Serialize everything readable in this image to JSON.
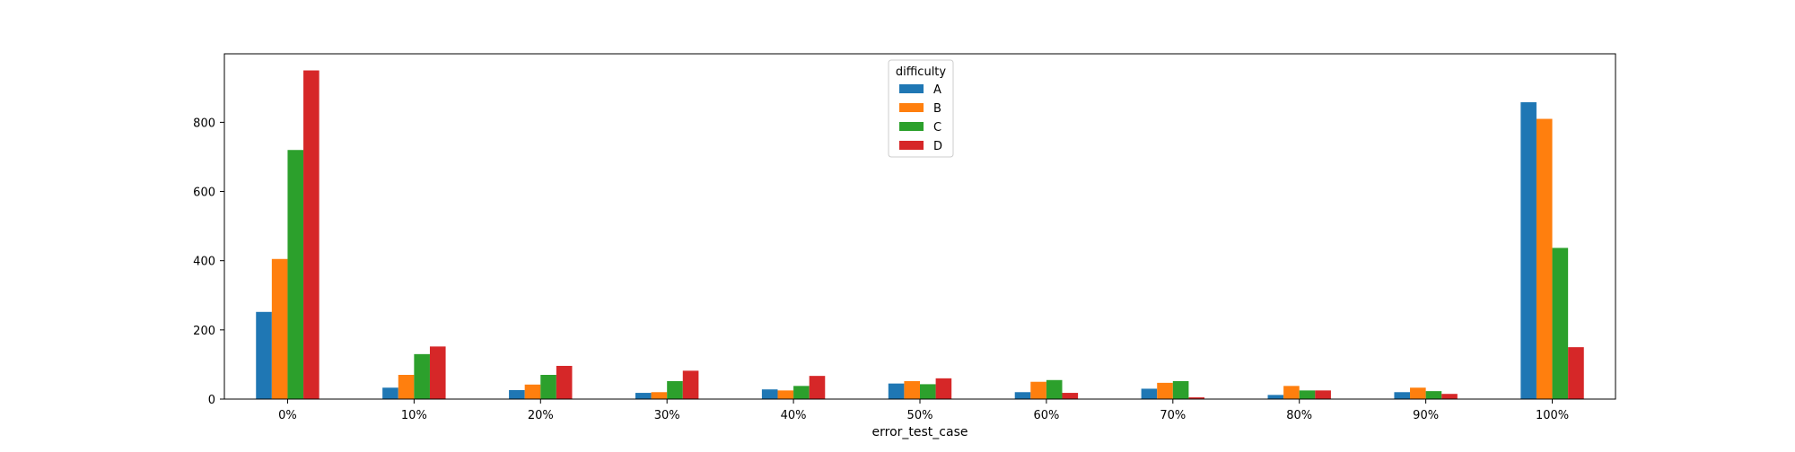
{
  "chart_data": {
    "type": "bar",
    "title": "",
    "xlabel": "error_test_case",
    "ylabel": "",
    "categories": [
      "0%",
      "10%",
      "20%",
      "30%",
      "40%",
      "50%",
      "60%",
      "70%",
      "80%",
      "90%",
      "100%"
    ],
    "ylim": [
      0,
      998
    ],
    "yticks": [
      0,
      200,
      400,
      600,
      800
    ],
    "grid": false,
    "legend": {
      "title": "difficulty",
      "placement": "upper-center"
    },
    "series": [
      {
        "name": "A",
        "color": "#1f77b4",
        "values": [
          252,
          33,
          26,
          18,
          28,
          45,
          20,
          30,
          12,
          20,
          858
        ]
      },
      {
        "name": "B",
        "color": "#ff7f0e",
        "values": [
          405,
          70,
          42,
          20,
          25,
          52,
          50,
          47,
          38,
          33,
          810
        ]
      },
      {
        "name": "C",
        "color": "#2ca02c",
        "values": [
          720,
          130,
          70,
          52,
          38,
          43,
          55,
          52,
          25,
          23,
          437
        ]
      },
      {
        "name": "D",
        "color": "#d62728",
        "values": [
          950,
          152,
          96,
          82,
          67,
          60,
          18,
          5,
          25,
          15,
          150
        ]
      }
    ]
  }
}
